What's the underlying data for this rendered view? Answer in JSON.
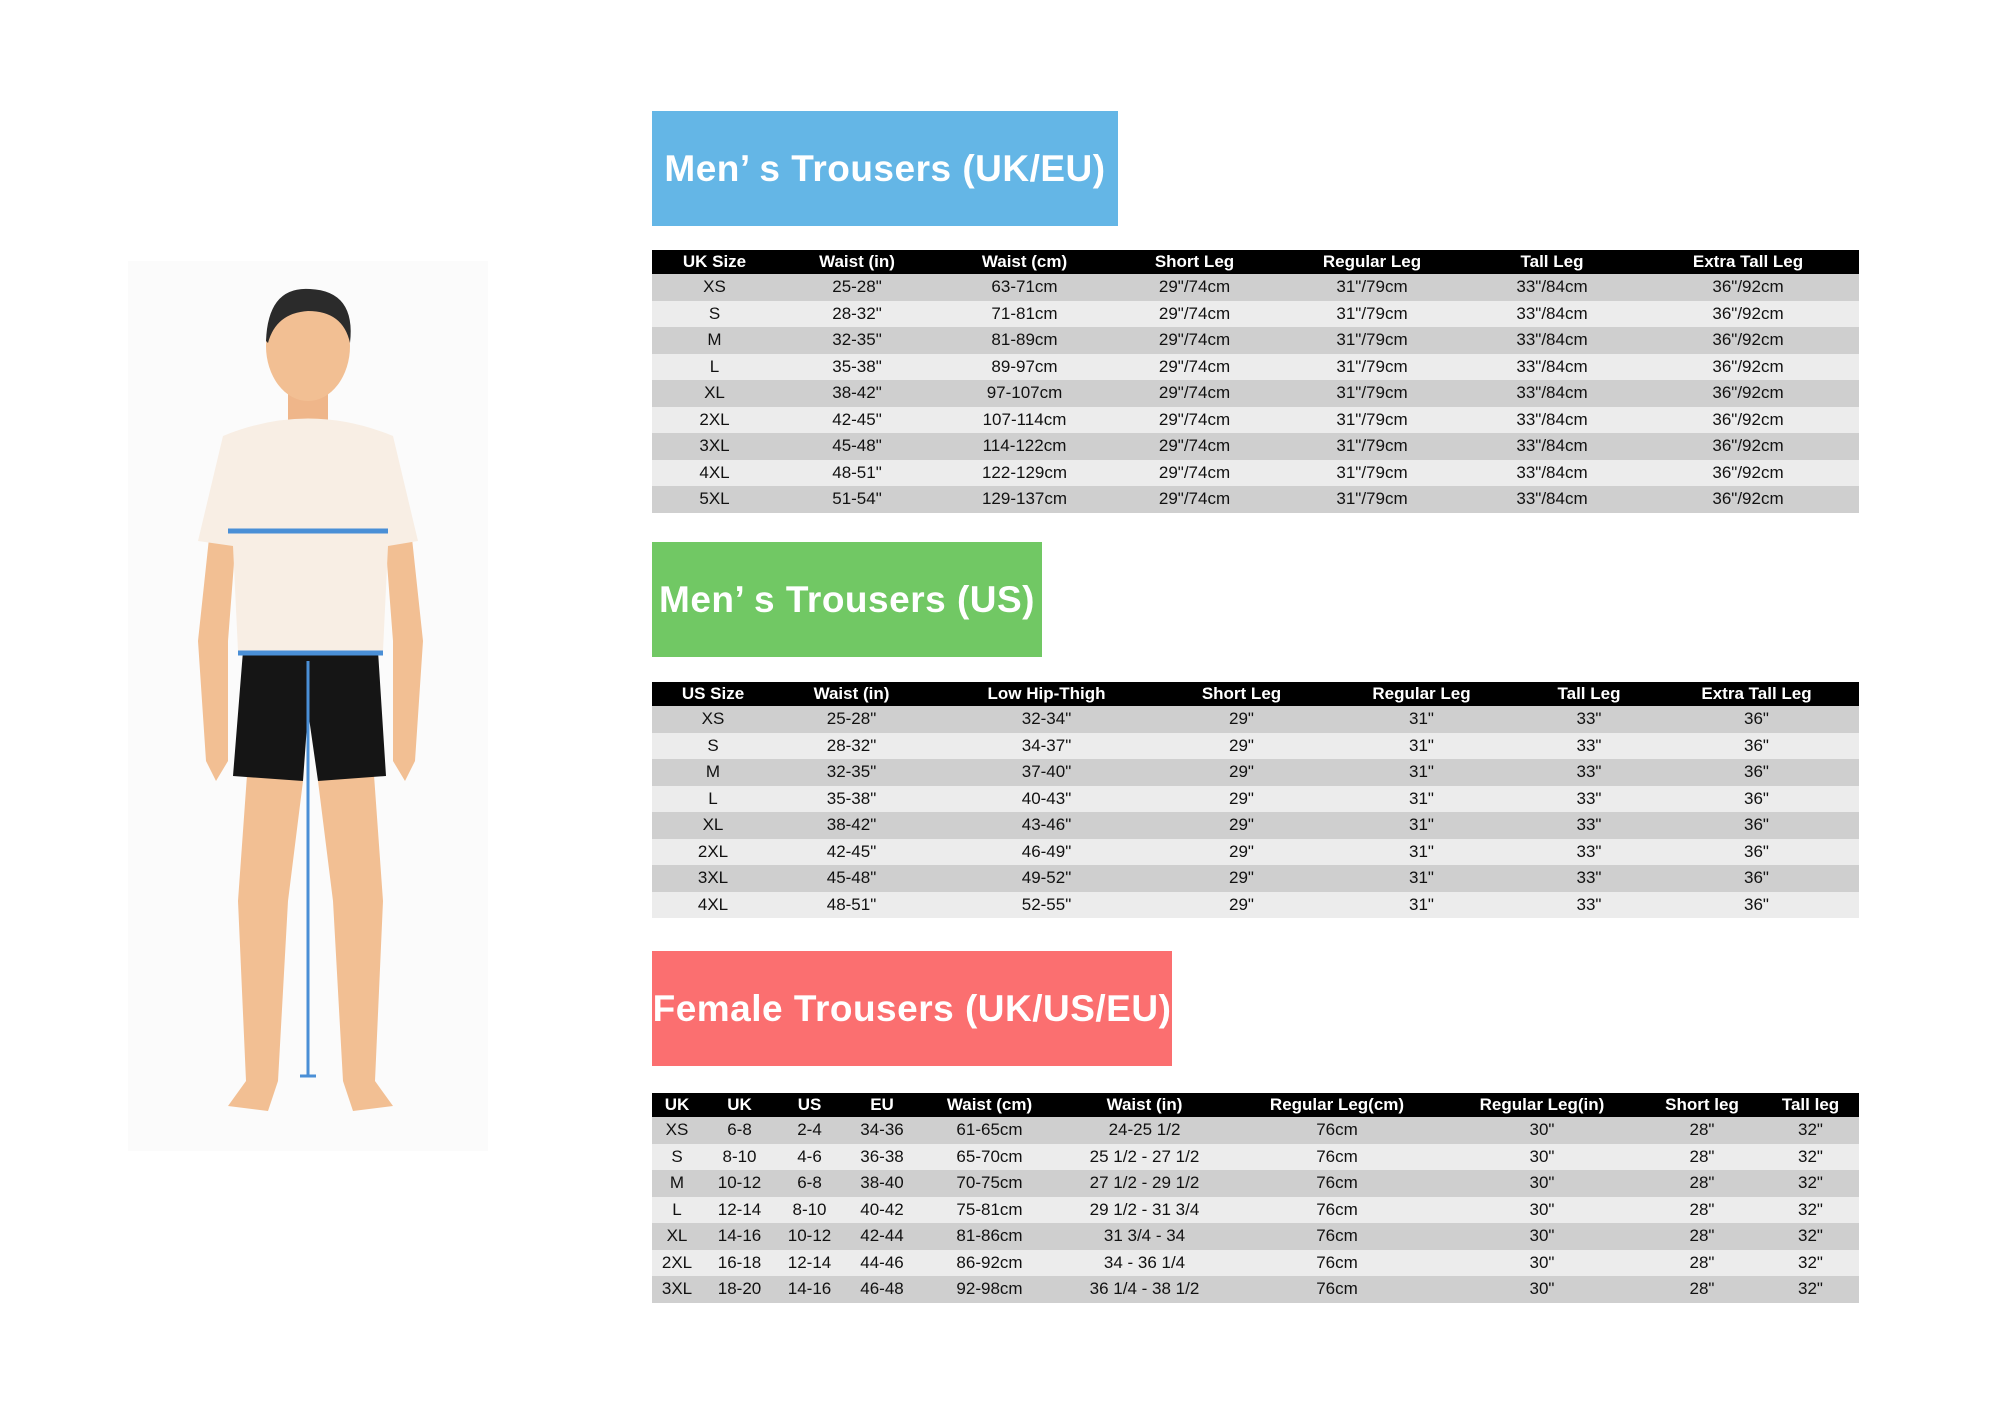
{
  "sections": {
    "uk": {
      "title": "Men’ s Trousers (UK/EU)",
      "color": "#64b6e6",
      "headers": [
        "UK Size",
        "Waist (in)",
        "Waist (cm)",
        "Short Leg",
        "Regular Leg",
        "Tall Leg",
        "Extra Tall Leg"
      ],
      "rows": [
        [
          "XS",
          "25-28\"",
          "63-71cm",
          "29\"/74cm",
          "31\"/79cm",
          "33\"/84cm",
          "36\"/92cm"
        ],
        [
          "S",
          "28-32\"",
          "71-81cm",
          "29\"/74cm",
          "31\"/79cm",
          "33\"/84cm",
          "36\"/92cm"
        ],
        [
          "M",
          "32-35\"",
          "81-89cm",
          "29\"/74cm",
          "31\"/79cm",
          "33\"/84cm",
          "36\"/92cm"
        ],
        [
          "L",
          "35-38\"",
          "89-97cm",
          "29\"/74cm",
          "31\"/79cm",
          "33\"/84cm",
          "36\"/92cm"
        ],
        [
          "XL",
          "38-42\"",
          "97-107cm",
          "29\"/74cm",
          "31\"/79cm",
          "33\"/84cm",
          "36\"/92cm"
        ],
        [
          "2XL",
          "42-45\"",
          "107-114cm",
          "29\"/74cm",
          "31\"/79cm",
          "33\"/84cm",
          "36\"/92cm"
        ],
        [
          "3XL",
          "45-48\"",
          "114-122cm",
          "29\"/74cm",
          "31\"/79cm",
          "33\"/84cm",
          "36\"/92cm"
        ],
        [
          "4XL",
          "48-51\"",
          "122-129cm",
          "29\"/74cm",
          "31\"/79cm",
          "33\"/84cm",
          "36\"/92cm"
        ],
        [
          "5XL",
          "51-54\"",
          "129-137cm",
          "29\"/74cm",
          "31\"/79cm",
          "33\"/84cm",
          "36\"/92cm"
        ]
      ]
    },
    "us": {
      "title": "Men’ s Trousers (US)",
      "color": "#71c864",
      "headers": [
        "US Size",
        "Waist (in)",
        "Low Hip-Thigh",
        "Short Leg",
        "Regular Leg",
        "Tall Leg",
        "Extra Tall Leg"
      ],
      "rows": [
        [
          "XS",
          "25-28\"",
          "32-34\"",
          "29\"",
          "31\"",
          "33\"",
          "36\""
        ],
        [
          "S",
          "28-32\"",
          "34-37\"",
          "29\"",
          "31\"",
          "33\"",
          "36\""
        ],
        [
          "M",
          "32-35\"",
          "37-40\"",
          "29\"",
          "31\"",
          "33\"",
          "36\""
        ],
        [
          "L",
          "35-38\"",
          "40-43\"",
          "29\"",
          "31\"",
          "33\"",
          "36\""
        ],
        [
          "XL",
          "38-42\"",
          "43-46\"",
          "29\"",
          "31\"",
          "33\"",
          "36\""
        ],
        [
          "2XL",
          "42-45\"",
          "46-49\"",
          "29\"",
          "31\"",
          "33\"",
          "36\""
        ],
        [
          "3XL",
          "45-48\"",
          "49-52\"",
          "29\"",
          "31\"",
          "33\"",
          "36\""
        ],
        [
          "4XL",
          "48-51\"",
          "52-55\"",
          "29\"",
          "31\"",
          "33\"",
          "36\""
        ]
      ]
    },
    "female": {
      "title": "Female Trousers (UK/US/EU)",
      "color": "#fb6f70",
      "headers": [
        "UK",
        "UK",
        "US",
        "EU",
        "Waist (cm)",
        "Waist (in)",
        "Regular Leg(cm)",
        "Regular Leg(in)",
        "Short leg",
        "Tall leg"
      ],
      "rows": [
        [
          "XS",
          "6-8",
          "2-4",
          "34-36",
          "61-65cm",
          "24-25 1/2",
          "76cm",
          "30\"",
          "28\"",
          "32\""
        ],
        [
          "S",
          "8-10",
          "4-6",
          "36-38",
          "65-70cm",
          "25 1/2 - 27 1/2",
          "76cm",
          "30\"",
          "28\"",
          "32\""
        ],
        [
          "M",
          "10-12",
          "6-8",
          "38-40",
          "70-75cm",
          "27 1/2 - 29 1/2",
          "76cm",
          "30\"",
          "28\"",
          "32\""
        ],
        [
          "L",
          "12-14",
          "8-10",
          "40-42",
          "75-81cm",
          "29 1/2 - 31 3/4",
          "76cm",
          "30\"",
          "28\"",
          "32\""
        ],
        [
          "XL",
          "14-16",
          "10-12",
          "42-44",
          "81-86cm",
          "31 3/4 - 34",
          "76cm",
          "30\"",
          "28\"",
          "32\""
        ],
        [
          "2XL",
          "16-18",
          "12-14",
          "44-46",
          "86-92cm",
          "34 - 36 1/4",
          "76cm",
          "30\"",
          "28\"",
          "32\""
        ],
        [
          "3XL",
          "18-20",
          "14-16",
          "46-48",
          "92-98cm",
          "36 1/4 - 38 1/2",
          "76cm",
          "30\"",
          "28\"",
          "32\""
        ]
      ]
    }
  },
  "figure": {
    "icon": "male-body-measurement-illustration",
    "measure_color": "#4a8fd6"
  }
}
